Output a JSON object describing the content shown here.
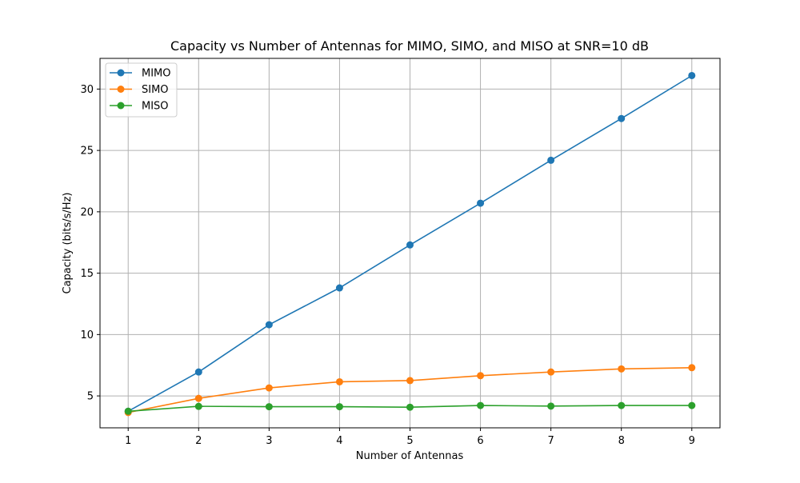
{
  "chart_data": {
    "type": "line",
    "title": "Capacity vs Number of Antennas for MIMO, SIMO, and MISO at SNR=10 dB",
    "xlabel": "Number of Antennas",
    "ylabel": "Capacity (bits/s/Hz)",
    "x": [
      1,
      2,
      3,
      4,
      5,
      6,
      7,
      8,
      9
    ],
    "xlim": [
      0.6,
      9.4
    ],
    "ylim": [
      2.4,
      32.5
    ],
    "xticks": [
      1,
      2,
      3,
      4,
      5,
      6,
      7,
      8,
      9
    ],
    "yticks": [
      5,
      10,
      15,
      20,
      25,
      30
    ],
    "grid": true,
    "legend_position": "upper-left",
    "series": [
      {
        "name": "MIMO",
        "color": "#1f77b4",
        "values": [
          3.75,
          6.95,
          10.8,
          13.8,
          17.3,
          20.7,
          24.2,
          27.6,
          31.1
        ]
      },
      {
        "name": "SIMO",
        "color": "#ff7f0e",
        "values": [
          3.65,
          4.8,
          5.65,
          6.15,
          6.25,
          6.65,
          6.95,
          7.2,
          7.3
        ]
      },
      {
        "name": "MISO",
        "color": "#2ca02c",
        "values": [
          3.75,
          4.15,
          4.12,
          4.12,
          4.08,
          4.22,
          4.17,
          4.22,
          4.22
        ]
      }
    ]
  }
}
